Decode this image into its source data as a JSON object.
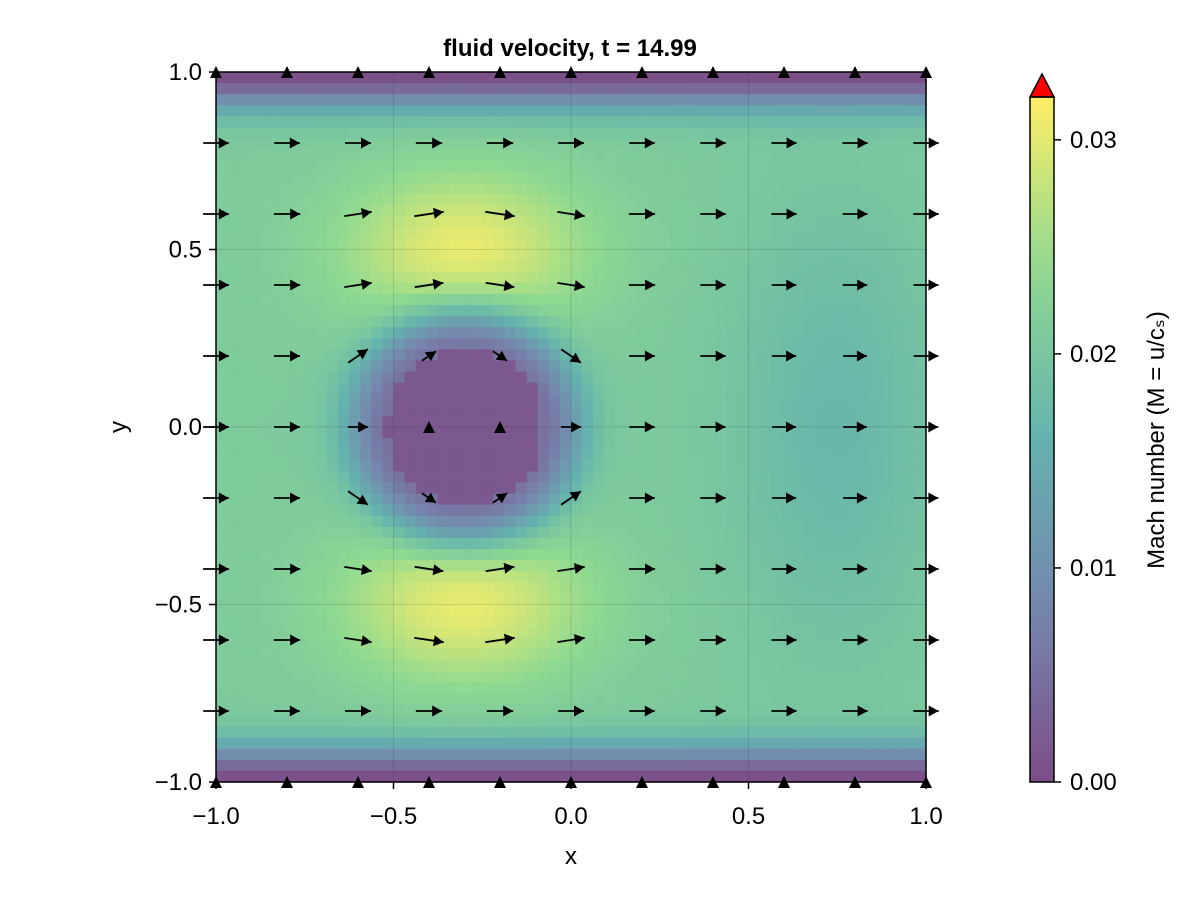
{
  "chart_data": {
    "type": "heatmap",
    "title": "fluid velocity, t = 14.99",
    "xlabel": "x",
    "ylabel": "y",
    "xlim": [
      -1.0,
      1.0
    ],
    "ylim": [
      -1.0,
      1.0
    ],
    "x_ticks": [
      "−1.0",
      "−0.5",
      "0.0",
      "0.5",
      "1.0"
    ],
    "x_tick_values": [
      -1.0,
      -0.5,
      0.0,
      0.5,
      1.0
    ],
    "y_ticks": [
      "−1.0",
      "−0.5",
      "0.0",
      "0.5",
      "1.0"
    ],
    "y_tick_values": [
      -1.0,
      -0.5,
      0.0,
      0.5,
      1.0
    ],
    "grid": true,
    "colormap": "viridis",
    "colorbar": {
      "label": "Mach number (M = u/cₛ)",
      "range": [
        0.0,
        0.032
      ],
      "ticks": [
        "0.00",
        "0.01",
        "0.02",
        "0.03"
      ],
      "tick_values": [
        0.0,
        0.01,
        0.02,
        0.03
      ],
      "extend_max_color": "#ff0000"
    },
    "field": {
      "description_of_structure": "Mach number field: low near y=±1 walls and in an obstacle region centered near (-0.3, 0); maxima near (-0.3, ±0.5); background about 0.021",
      "obstacle_center": [
        -0.3,
        0.0
      ],
      "obstacle_radius": 0.22,
      "peak_value": 0.0305,
      "peak_centers": [
        [
          -0.3,
          0.5
        ],
        [
          -0.3,
          -0.5
        ]
      ],
      "background_value": 0.021
    },
    "quiver": {
      "x": [
        -1.0,
        -0.8,
        -0.6,
        -0.4,
        -0.2,
        0.0,
        0.2,
        0.4,
        0.6,
        0.8,
        1.0
      ],
      "y": [
        -1.0,
        -0.8,
        -0.6,
        -0.4,
        -0.2,
        0.0,
        0.2,
        0.4,
        0.6,
        0.8,
        1.0
      ],
      "arrow_color": "#000000"
    }
  }
}
